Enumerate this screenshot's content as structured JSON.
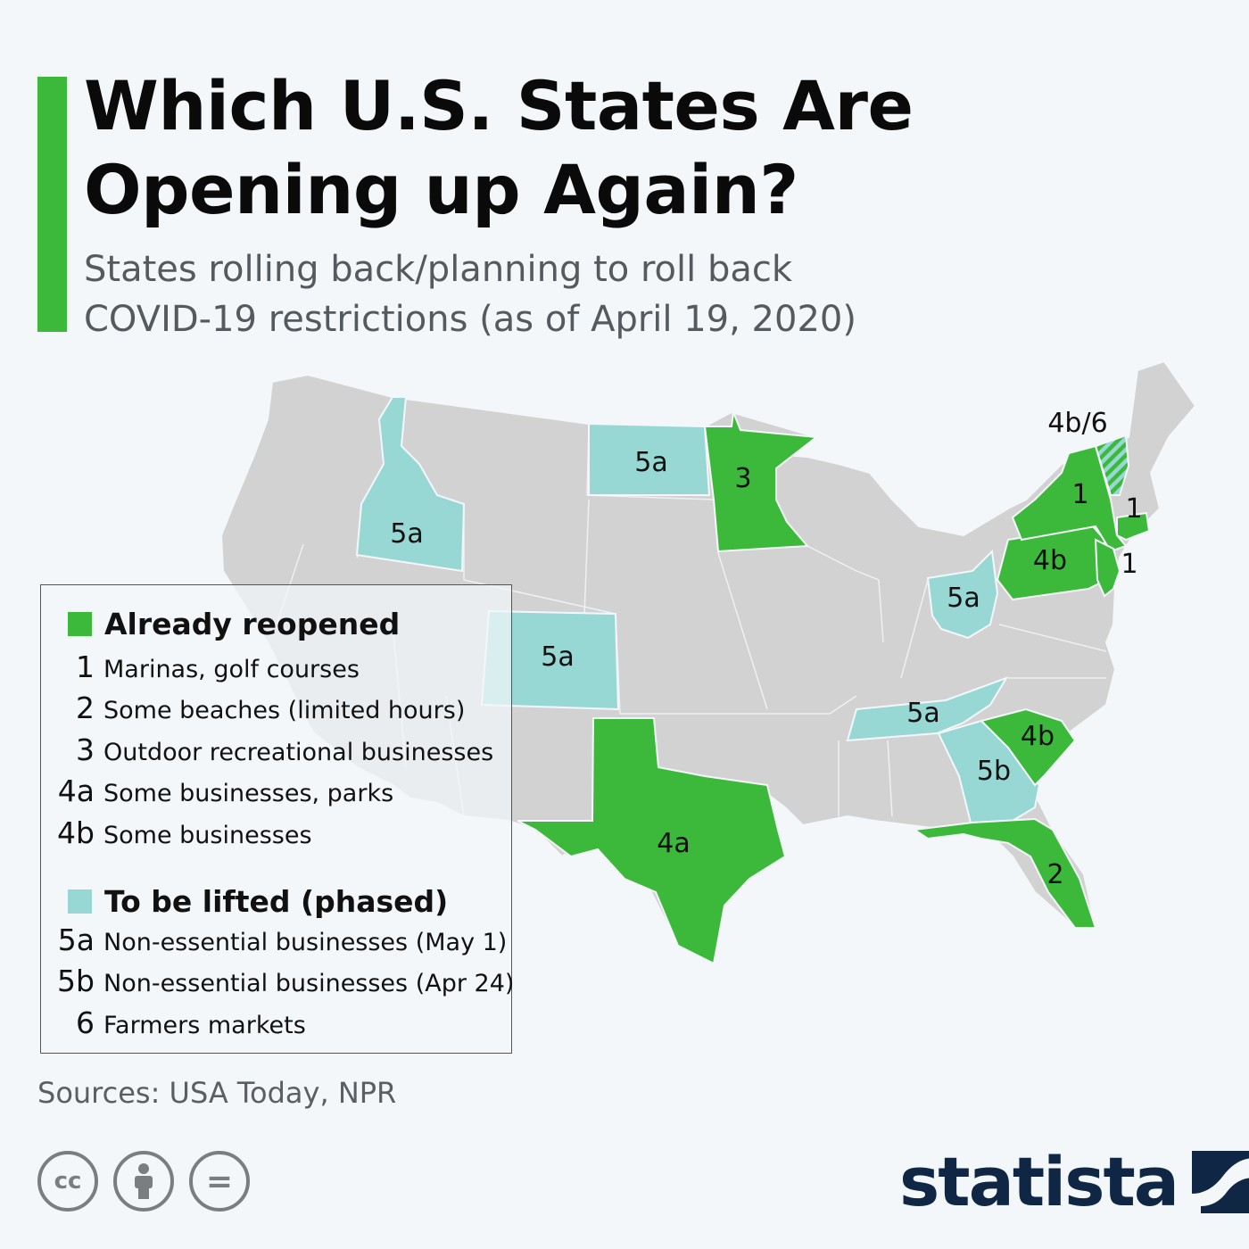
{
  "header": {
    "title": "Which U.S. States Are\nOpening up Again?",
    "subtitle": "States rolling back/planning to roll back\nCOVID-19 restrictions (as of April 19, 2020)"
  },
  "colors": {
    "accent": "#3cb93a",
    "reopened": "#3cb93a",
    "phased": "#98d8d4",
    "other": "#d2d2d2",
    "background": "#f3f7fa",
    "brand": "#0f2745"
  },
  "legend": {
    "group1": {
      "label": "Already reopened",
      "items": [
        {
          "code": "1",
          "text": "Marinas, golf courses"
        },
        {
          "code": "2",
          "text": "Some beaches (limited hours)"
        },
        {
          "code": "3",
          "text": "Outdoor recreational businesses"
        },
        {
          "code": "4a",
          "text": "Some businesses, parks"
        },
        {
          "code": "4b",
          "text": "Some businesses"
        }
      ]
    },
    "group2": {
      "label": "To be lifted (phased)",
      "items": [
        {
          "code": "5a",
          "text": "Non-essential businesses (May 1)"
        },
        {
          "code": "5b",
          "text": "Non-essential businesses (Apr 24)"
        },
        {
          "code": "6",
          "text": "Farmers markets"
        }
      ]
    }
  },
  "map": {
    "states": [
      {
        "state": "Idaho",
        "code": "5a",
        "status": "phased"
      },
      {
        "state": "North Dakota",
        "code": "5a",
        "status": "phased"
      },
      {
        "state": "Minnesota",
        "code": "3",
        "status": "reopened"
      },
      {
        "state": "Colorado",
        "code": "5a",
        "status": "phased"
      },
      {
        "state": "Texas",
        "code": "4a",
        "status": "reopened"
      },
      {
        "state": "Ohio",
        "code": "5a",
        "status": "phased"
      },
      {
        "state": "Tennessee",
        "code": "5a",
        "status": "phased"
      },
      {
        "state": "Georgia",
        "code": "5b",
        "status": "phased"
      },
      {
        "state": "South Carolina",
        "code": "4b",
        "status": "reopened"
      },
      {
        "state": "Florida",
        "code": "2",
        "status": "reopened"
      },
      {
        "state": "Pennsylvania",
        "code": "4b",
        "status": "reopened"
      },
      {
        "state": "New York",
        "code": "1",
        "status": "reopened"
      },
      {
        "state": "Connecticut",
        "code": "1",
        "status": "reopened"
      },
      {
        "state": "New Jersey",
        "code": "1",
        "status": "reopened"
      },
      {
        "state": "Vermont",
        "code": "4b/6",
        "status": "mixed"
      }
    ]
  },
  "sources": "Sources: USA Today, NPR",
  "footer": {
    "license_icons": [
      "creative-commons-icon",
      "attribution-icon",
      "no-derivatives-icon"
    ],
    "cc_glyph": "cc",
    "nd_glyph": "=",
    "brand": "statista"
  }
}
